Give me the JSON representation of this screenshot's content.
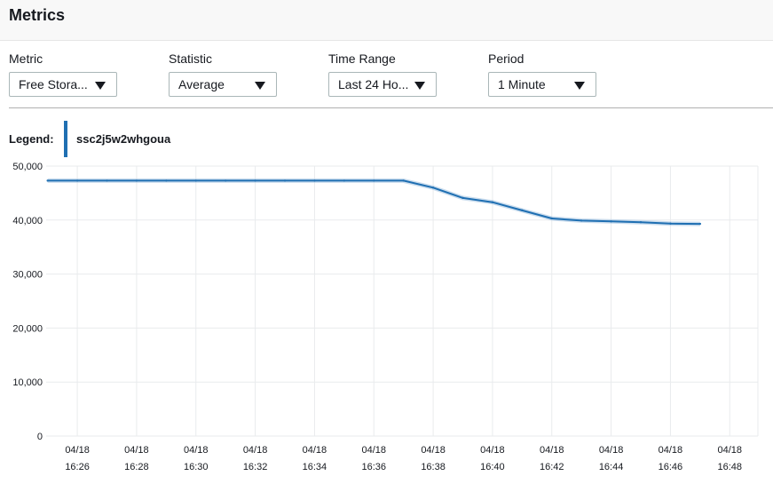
{
  "header": {
    "title": "Metrics"
  },
  "controls": [
    {
      "label": "Metric",
      "value": "Free Stora..."
    },
    {
      "label": "Statistic",
      "value": "Average"
    },
    {
      "label": "Time Range",
      "value": "Last 24 Ho..."
    },
    {
      "label": "Period",
      "value": "1 Minute"
    }
  ],
  "legend": {
    "title": "Legend:",
    "series_name": "ssc2j5w2whgoua",
    "color": "#1f6fb2"
  },
  "chart_data": {
    "type": "line",
    "title": "",
    "xlabel": "",
    "ylabel": "",
    "ylim": [
      0,
      50000
    ],
    "yticks": [
      "0",
      "10,000",
      "20,000",
      "30,000",
      "40,000",
      "50,000"
    ],
    "ytick_values": [
      0,
      10000,
      20000,
      30000,
      40000,
      50000
    ],
    "xlim_minutes": [
      24.95,
      48.95
    ],
    "xticks": [
      {
        "minute": 26,
        "date": "04/18",
        "time": "16:26"
      },
      {
        "minute": 28,
        "date": "04/18",
        "time": "16:28"
      },
      {
        "minute": 30,
        "date": "04/18",
        "time": "16:30"
      },
      {
        "minute": 32,
        "date": "04/18",
        "time": "16:32"
      },
      {
        "minute": 34,
        "date": "04/18",
        "time": "16:34"
      },
      {
        "minute": 36,
        "date": "04/18",
        "time": "16:36"
      },
      {
        "minute": 38,
        "date": "04/18",
        "time": "16:38"
      },
      {
        "minute": 40,
        "date": "04/18",
        "time": "16:40"
      },
      {
        "minute": 42,
        "date": "04/18",
        "time": "16:42"
      },
      {
        "minute": 44,
        "date": "04/18",
        "time": "16:44"
      },
      {
        "minute": 46,
        "date": "04/18",
        "time": "16:46"
      },
      {
        "minute": 48,
        "date": "04/18",
        "time": "16:48"
      }
    ],
    "series": [
      {
        "name": "ssc2j5w2whgoua",
        "color": "#1f6fb2",
        "x_minutes": [
          25,
          26,
          27,
          28,
          29,
          30,
          31,
          32,
          33,
          34,
          35,
          36,
          37,
          38,
          39,
          40,
          41,
          42,
          43,
          44,
          45,
          46,
          47
        ],
        "values": [
          47300,
          47300,
          47300,
          47300,
          47300,
          47300,
          47300,
          47300,
          47300,
          47300,
          47300,
          47300,
          47300,
          46000,
          44100,
          43300,
          41800,
          40300,
          39900,
          39750,
          39600,
          39350,
          39300
        ]
      }
    ]
  }
}
